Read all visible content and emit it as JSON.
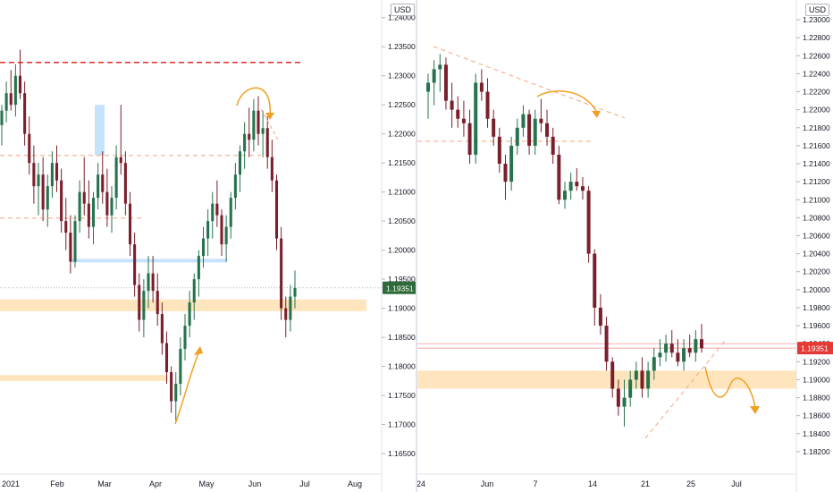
{
  "chart_data": [
    {
      "type": "candlestick",
      "currency": "USD",
      "price_axis_ticks": [
        "1.24000",
        "1.23500",
        "1.23000",
        "1.22500",
        "1.22000",
        "1.21500",
        "1.21000",
        "1.20500",
        "1.20000",
        "1.19500",
        "1.19000",
        "1.18500",
        "1.18000",
        "1.17500",
        "1.17000",
        "1.16500"
      ],
      "x_axis_labels": [
        "2021",
        "Feb",
        "Mar",
        "Apr",
        "May",
        "Jun",
        "Jul",
        "Aug"
      ],
      "last_price": "1.19351",
      "ylim": [
        1.163,
        1.2415
      ],
      "horizontal_levels": [
        {
          "price": 1.2323,
          "style": "dashed",
          "color": "#e53935"
        },
        {
          "price": 1.2163,
          "style": "dashed",
          "color": "#f4a582"
        },
        {
          "price": 1.2055,
          "style": "dashed",
          "color": "#f4a582"
        }
      ],
      "zones": [
        {
          "from": 1.1895,
          "to": 1.1915,
          "color": "#ffe0b2"
        },
        {
          "from": 1.1775,
          "to": 1.1785,
          "color": "#ffe0b2"
        },
        {
          "from": 1.198,
          "to": 1.1985,
          "color": "#bbdefb"
        }
      ],
      "candles": [
        [
          1.2215,
          1.225,
          1.218,
          1.224
        ],
        [
          1.224,
          1.229,
          1.222,
          1.227
        ],
        [
          1.227,
          1.231,
          1.224,
          1.225
        ],
        [
          1.225,
          1.232,
          1.223,
          1.23
        ],
        [
          1.23,
          1.2345,
          1.226,
          1.227
        ],
        [
          1.227,
          1.229,
          1.218,
          1.22
        ],
        [
          1.22,
          1.223,
          1.213,
          1.215
        ],
        [
          1.215,
          1.218,
          1.208,
          1.211
        ],
        [
          1.211,
          1.215,
          1.206,
          1.213
        ],
        [
          1.213,
          1.216,
          1.205,
          1.207
        ],
        [
          1.207,
          1.213,
          1.204,
          1.211
        ],
        [
          1.211,
          1.217,
          1.209,
          1.215
        ],
        [
          1.215,
          1.218,
          1.21,
          1.212
        ],
        [
          1.212,
          1.214,
          1.203,
          1.205
        ],
        [
          1.205,
          1.209,
          1.2,
          1.203
        ],
        [
          1.203,
          1.206,
          1.196,
          1.198
        ],
        [
          1.198,
          1.206,
          1.197,
          1.205
        ],
        [
          1.205,
          1.212,
          1.203,
          1.21
        ],
        [
          1.21,
          1.216,
          1.206,
          1.208
        ],
        [
          1.208,
          1.212,
          1.202,
          1.204
        ],
        [
          1.204,
          1.21,
          1.201,
          1.209
        ],
        [
          1.209,
          1.215,
          1.207,
          1.213
        ],
        [
          1.213,
          1.217,
          1.208,
          1.21
        ],
        [
          1.21,
          1.214,
          1.204,
          1.206
        ],
        [
          1.206,
          1.211,
          1.203,
          1.209
        ],
        [
          1.209,
          1.218,
          1.207,
          1.216
        ],
        [
          1.216,
          1.225,
          1.213,
          1.215
        ],
        [
          1.215,
          1.217,
          1.206,
          1.208
        ],
        [
          1.208,
          1.21,
          1.199,
          1.201
        ],
        [
          1.201,
          1.203,
          1.192,
          1.194
        ],
        [
          1.194,
          1.196,
          1.186,
          1.188
        ],
        [
          1.188,
          1.195,
          1.185,
          1.193
        ],
        [
          1.193,
          1.199,
          1.19,
          1.196
        ],
        [
          1.196,
          1.199,
          1.191,
          1.193
        ],
        [
          1.193,
          1.196,
          1.187,
          1.189
        ],
        [
          1.189,
          1.191,
          1.182,
          1.184
        ],
        [
          1.184,
          1.186,
          1.177,
          1.179
        ],
        [
          1.179,
          1.18,
          1.172,
          1.174
        ],
        [
          1.174,
          1.179,
          1.1705,
          1.177
        ],
        [
          1.177,
          1.185,
          1.175,
          1.183
        ],
        [
          1.183,
          1.189,
          1.181,
          1.187
        ],
        [
          1.187,
          1.193,
          1.185,
          1.191
        ],
        [
          1.191,
          1.196,
          1.188,
          1.195
        ],
        [
          1.195,
          1.2,
          1.192,
          1.199
        ],
        [
          1.199,
          1.204,
          1.197,
          1.202
        ],
        [
          1.202,
          1.207,
          1.199,
          1.205
        ],
        [
          1.205,
          1.21,
          1.202,
          1.208
        ],
        [
          1.208,
          1.212,
          1.204,
          1.206
        ],
        [
          1.206,
          1.207,
          1.199,
          1.201
        ],
        [
          1.201,
          1.206,
          1.198,
          1.204
        ],
        [
          1.204,
          1.21,
          1.202,
          1.209
        ],
        [
          1.209,
          1.215,
          1.207,
          1.213
        ],
        [
          1.213,
          1.218,
          1.21,
          1.217
        ],
        [
          1.217,
          1.222,
          1.214,
          1.22
        ],
        [
          1.22,
          1.2245,
          1.216,
          1.219
        ],
        [
          1.219,
          1.226,
          1.217,
          1.224
        ],
        [
          1.224,
          1.2265,
          1.218,
          1.22
        ],
        [
          1.22,
          1.224,
          1.216,
          1.221
        ],
        [
          1.221,
          1.223,
          1.214,
          1.216
        ],
        [
          1.216,
          1.219,
          1.21,
          1.212
        ],
        [
          1.212,
          1.213,
          1.2,
          1.202
        ],
        [
          1.202,
          1.204,
          1.188,
          1.19
        ],
        [
          1.19,
          1.192,
          1.185,
          1.188
        ],
        [
          1.188,
          1.194,
          1.186,
          1.192
        ],
        [
          1.192,
          1.1965,
          1.19,
          1.1935
        ]
      ],
      "annotations": [
        "curved-arrow-down-at-top",
        "curved-arrow-up-from-bottom",
        "short-dashed-trendline"
      ]
    },
    {
      "type": "candlestick",
      "currency": "USD",
      "price_axis_ticks": [
        "1.23000",
        "1.22800",
        "1.22600",
        "1.22400",
        "1.22200",
        "1.22000",
        "1.21800",
        "1.21600",
        "1.21400",
        "1.21200",
        "1.21000",
        "1.20800",
        "1.20600",
        "1.20400",
        "1.20200",
        "1.20000",
        "1.19800",
        "1.19600",
        "1.19400",
        "1.19200",
        "1.19000",
        "1.18800",
        "1.18600",
        "1.18400",
        "1.18200"
      ],
      "x_axis_labels": [
        "24",
        "Jun",
        "7",
        "14",
        "21",
        "25",
        "Jul"
      ],
      "last_price": "1.19351",
      "ylim": [
        1.1805,
        1.2312
      ],
      "horizontal_levels": [
        {
          "price": 1.2165,
          "style": "dashed",
          "color": "#f4a582"
        },
        {
          "price": 1.194,
          "style": "solid",
          "color": "#f8b4b4"
        }
      ],
      "zones": [
        {
          "from": 1.189,
          "to": 1.191,
          "color": "#ffe0b2"
        }
      ],
      "candles": [
        [
          1.222,
          1.224,
          1.219,
          1.223
        ],
        [
          1.223,
          1.2255,
          1.2205,
          1.2245
        ],
        [
          1.2245,
          1.2262,
          1.222,
          1.225
        ],
        [
          1.225,
          1.2258,
          1.22,
          1.221
        ],
        [
          1.221,
          1.223,
          1.218,
          1.22
        ],
        [
          1.22,
          1.2215,
          1.218,
          1.219
        ],
        [
          1.219,
          1.221,
          1.217,
          1.2185
        ],
        [
          1.2185,
          1.22,
          1.214,
          1.215
        ],
        [
          1.215,
          1.224,
          1.214,
          1.223
        ],
        [
          1.223,
          1.2245,
          1.221,
          1.222
        ],
        [
          1.222,
          1.2235,
          1.218,
          1.219
        ],
        [
          1.219,
          1.22,
          1.216,
          1.217
        ],
        [
          1.217,
          1.218,
          1.213,
          1.214
        ],
        [
          1.214,
          1.215,
          1.21,
          1.212
        ],
        [
          1.212,
          1.217,
          1.211,
          1.216
        ],
        [
          1.216,
          1.219,
          1.215,
          1.218
        ],
        [
          1.218,
          1.2205,
          1.217,
          1.2195
        ],
        [
          1.2195,
          1.22,
          1.215,
          1.216
        ],
        [
          1.216,
          1.22,
          1.215,
          1.219
        ],
        [
          1.219,
          1.2212,
          1.2175,
          1.2185
        ],
        [
          1.2185,
          1.22,
          1.216,
          1.217
        ],
        [
          1.217,
          1.218,
          1.214,
          1.215
        ],
        [
          1.215,
          1.216,
          1.2095,
          1.21
        ],
        [
          1.21,
          1.212,
          1.209,
          1.211
        ],
        [
          1.211,
          1.213,
          1.21,
          1.212
        ],
        [
          1.212,
          1.2135,
          1.211,
          1.2115
        ],
        [
          1.2115,
          1.2125,
          1.21,
          1.211
        ],
        [
          1.211,
          1.2115,
          1.203,
          1.204
        ],
        [
          1.204,
          1.2045,
          1.196,
          1.198
        ],
        [
          1.198,
          1.1995,
          1.195,
          1.196
        ],
        [
          1.196,
          1.197,
          1.191,
          1.192
        ],
        [
          1.192,
          1.1925,
          1.188,
          1.189
        ],
        [
          1.189,
          1.19,
          1.186,
          1.187
        ],
        [
          1.187,
          1.19,
          1.1848,
          1.188
        ],
        [
          1.188,
          1.191,
          1.187,
          1.19
        ],
        [
          1.19,
          1.192,
          1.189,
          1.191
        ],
        [
          1.191,
          1.1925,
          1.188,
          1.189
        ],
        [
          1.189,
          1.192,
          1.188,
          1.191
        ],
        [
          1.191,
          1.1935,
          1.19,
          1.1925
        ],
        [
          1.1925,
          1.1945,
          1.1915,
          1.193
        ],
        [
          1.193,
          1.195,
          1.192,
          1.194
        ],
        [
          1.194,
          1.1955,
          1.1925,
          1.193
        ],
        [
          1.193,
          1.1945,
          1.1915,
          1.192
        ],
        [
          1.192,
          1.1945,
          1.191,
          1.1935
        ],
        [
          1.1935,
          1.195,
          1.1925,
          1.193
        ],
        [
          1.193,
          1.1955,
          1.192,
          1.1945
        ],
        [
          1.1945,
          1.1962,
          1.193,
          1.1935
        ]
      ],
      "annotations": [
        "descending-dashed-trendline",
        "curved-arrow-at-top",
        "rising-dashed-trendline",
        "curved-arrow-projection-down"
      ]
    }
  ]
}
